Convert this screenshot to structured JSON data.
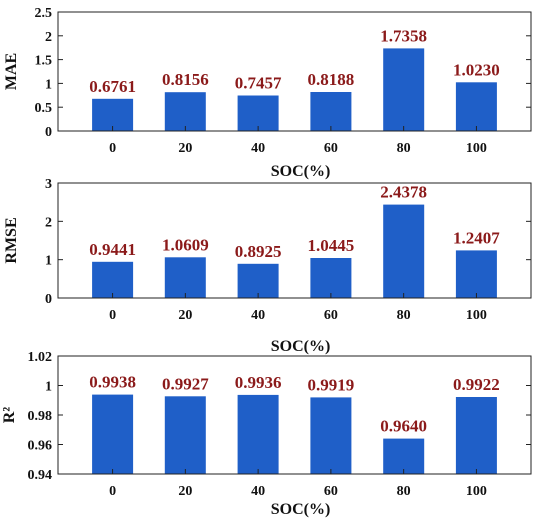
{
  "chart_data": [
    {
      "type": "bar",
      "categories": [
        "0",
        "20",
        "40",
        "60",
        "80",
        "100"
      ],
      "values": [
        0.6761,
        0.8156,
        0.7457,
        0.8188,
        1.7358,
        1.023
      ],
      "data_labels": [
        "0.6761",
        "0.8156",
        "0.7457",
        "0.8188",
        "1.7358",
        "1.0230"
      ],
      "xlabel": "SOC(%)",
      "ylabel": "MAE",
      "ylim": [
        0,
        2.5
      ],
      "yticks": [
        "0",
        "0.5",
        "1",
        "1.5",
        "2",
        "2.5"
      ],
      "grid": false,
      "bar_color": "#1f5fc8",
      "label_color": "#8b1a1a"
    },
    {
      "type": "bar",
      "categories": [
        "0",
        "20",
        "40",
        "60",
        "80",
        "100"
      ],
      "values": [
        0.9441,
        1.0609,
        0.8925,
        1.0445,
        2.4378,
        1.2407
      ],
      "data_labels": [
        "0.9441",
        "1.0609",
        "0.8925",
        "1.0445",
        "2.4378",
        "1.2407"
      ],
      "xlabel": "SOC(%)",
      "ylabel": "RMSE",
      "ylim": [
        0,
        3
      ],
      "yticks": [
        "0",
        "1",
        "2",
        "3"
      ],
      "grid": false,
      "bar_color": "#1f5fc8",
      "label_color": "#8b1a1a"
    },
    {
      "type": "bar",
      "categories": [
        "0",
        "20",
        "40",
        "60",
        "80",
        "100"
      ],
      "values": [
        0.9938,
        0.9927,
        0.9936,
        0.9919,
        0.964,
        0.9922
      ],
      "data_labels": [
        "0.9938",
        "0.9927",
        "0.9936",
        "0.9919",
        "0.9640",
        "0.9922"
      ],
      "xlabel": "SOC(%)",
      "ylabel": "R²",
      "ylim": [
        0.94,
        1.02
      ],
      "yticks": [
        "0.94",
        "0.96",
        "0.98",
        "1",
        "1.02"
      ],
      "grid": false,
      "bar_color": "#1f5fc8",
      "label_color": "#8b1a1a"
    }
  ]
}
